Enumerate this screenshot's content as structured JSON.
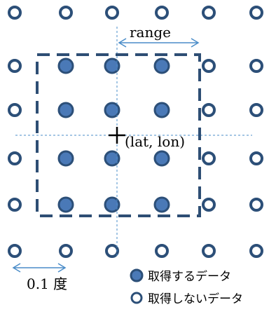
{
  "labels": {
    "range": "range",
    "center": "(lat, lon)",
    "spacing": "0.1 度",
    "legend_fetched": "取得するデータ",
    "legend_not_fetched": "取得しないデータ"
  },
  "grid": {
    "columns": 6,
    "rows": 6,
    "fetched_cells": [
      [
        1,
        1
      ],
      [
        1,
        2
      ],
      [
        1,
        3
      ],
      [
        2,
        1
      ],
      [
        2,
        2
      ],
      [
        2,
        3
      ],
      [
        3,
        1
      ],
      [
        3,
        2
      ],
      [
        3,
        3
      ],
      [
        4,
        1
      ],
      [
        4,
        2
      ],
      [
        4,
        3
      ]
    ]
  },
  "colors": {
    "point_stroke": "#2c4f78",
    "point_fill": "#4a79b7",
    "guide": "#4a8cc8",
    "range_box": "#2e4e74",
    "plus": "#000000",
    "text": "#000000"
  },
  "icons": {
    "center": "plus-icon",
    "range_arrow": "double-arrow-icon",
    "spacing_arrow": "double-arrow-icon"
  }
}
